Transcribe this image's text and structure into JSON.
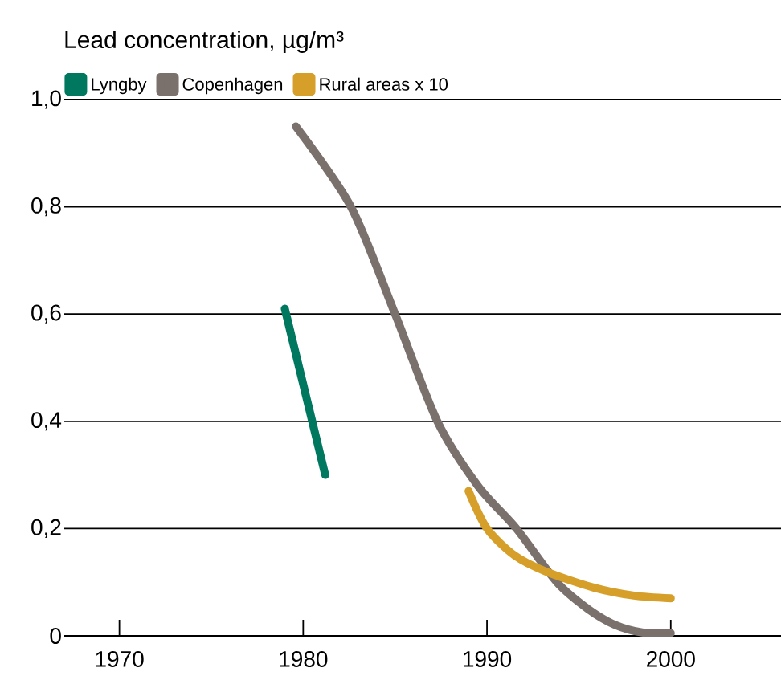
{
  "chart_data": {
    "type": "line",
    "ylabel": "Lead concentration, µg/m³",
    "xlim": [
      1967,
      2006
    ],
    "ylim": [
      0,
      1.0
    ],
    "xticks": [
      1970,
      1980,
      1990,
      2000
    ],
    "yticks": [
      {
        "value": 0,
        "label": "0"
      },
      {
        "value": 0.2,
        "label": "0,2"
      },
      {
        "value": 0.4,
        "label": "0,4"
      },
      {
        "value": 0.6,
        "label": "0,6"
      },
      {
        "value": 0.8,
        "label": "0,8"
      },
      {
        "value": 1.0,
        "label": "1,0"
      }
    ],
    "grid": "y",
    "legend": "top left",
    "marker": "none",
    "line_style": "solid",
    "series": [
      {
        "name": "Lyngby",
        "color": "#00775f",
        "x": [
          1979,
          1981.2
        ],
        "values": [
          0.61,
          0.3
        ]
      },
      {
        "name": "Copenhagen",
        "color": "#7a706c",
        "x": [
          1979.6,
          1982.6,
          1985,
          1987.3,
          1989.5,
          1991.6,
          1993.8,
          1995.5,
          1997,
          1998.5,
          2000
        ],
        "values": [
          0.95,
          0.8,
          0.6,
          0.4,
          0.28,
          0.2,
          0.1,
          0.05,
          0.02,
          0.006,
          0.005
        ]
      },
      {
        "name": "Rural areas x 10",
        "color": "#d69f2a",
        "x": [
          1989,
          1990,
          1991.5,
          1993.2,
          1995.8,
          1998,
          2000
        ],
        "values": [
          0.27,
          0.2,
          0.15,
          0.12,
          0.09,
          0.075,
          0.07
        ]
      }
    ]
  }
}
